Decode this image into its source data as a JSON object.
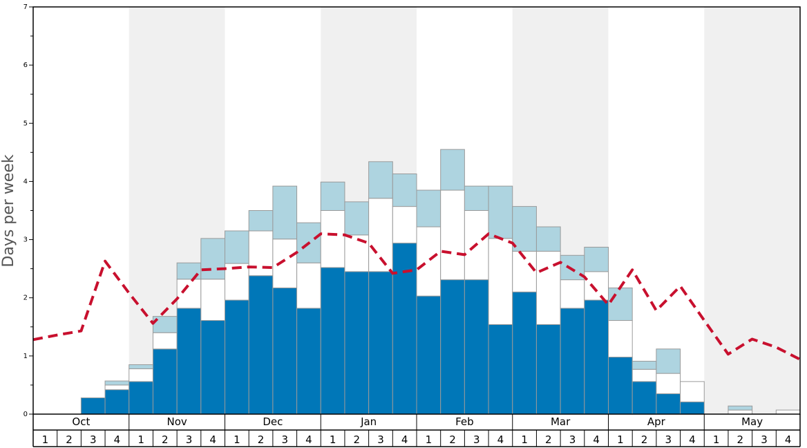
{
  "chart_data": {
    "type": "bar",
    "stacked": true,
    "ylabel": "Days per week",
    "ylim": [
      0,
      7
    ],
    "yticks": [
      0,
      1,
      2,
      3,
      4,
      5,
      6,
      7
    ],
    "months": [
      "Oct",
      "Nov",
      "Dec",
      "Jan",
      "Feb",
      "Mar",
      "Apr",
      "May"
    ],
    "weeks": [
      "1",
      "2",
      "3",
      "4"
    ],
    "series": [
      {
        "color": "#0077b8",
        "values": [
          0,
          0,
          0.28,
          0.42,
          0.56,
          1.12,
          1.82,
          1.61,
          1.96,
          2.38,
          2.17,
          1.82,
          2.52,
          2.45,
          2.45,
          2.94,
          2.03,
          2.31,
          2.31,
          1.54,
          2.1,
          1.54,
          1.82,
          1.96,
          0.98,
          0.56,
          0.35,
          0.21,
          0,
          0,
          0,
          0
        ]
      },
      {
        "color": "#ffffff",
        "values": [
          0,
          0,
          0,
          0.08,
          0.22,
          0.28,
          0.5,
          0.71,
          0.63,
          0.77,
          0.84,
          0.78,
          0.98,
          0.63,
          1.26,
          0.63,
          1.19,
          1.54,
          1.19,
          1.48,
          0.7,
          1.26,
          0.49,
          0.49,
          0.63,
          0.21,
          0.35,
          0.35,
          0,
          0.07,
          0,
          0.07
        ]
      },
      {
        "color": "#aed4e0",
        "values": [
          0,
          0,
          0,
          0.07,
          0.07,
          0.28,
          0.28,
          0.7,
          0.56,
          0.35,
          0.91,
          0.69,
          0.49,
          0.57,
          0.63,
          0.56,
          0.63,
          0.7,
          0.42,
          0.9,
          0.77,
          0.42,
          0.42,
          0.42,
          0.56,
          0.14,
          0.42,
          0,
          0,
          0.07,
          0,
          0
        ]
      }
    ],
    "line": {
      "color": "#c8102e",
      "style": "dashed",
      "values": [
        1.28,
        1.36,
        1.43,
        2.63,
        2.08,
        1.56,
        1.98,
        2.48,
        2.5,
        2.53,
        2.52,
        2.78,
        3.1,
        3.08,
        2.94,
        2.42,
        2.48,
        2.8,
        2.74,
        3.1,
        2.94,
        2.43,
        2.61,
        2.36,
        1.88,
        2.48,
        1.78,
        2.2,
        1.61,
        1.03,
        1.29,
        1.15,
        0.94
      ]
    }
  }
}
